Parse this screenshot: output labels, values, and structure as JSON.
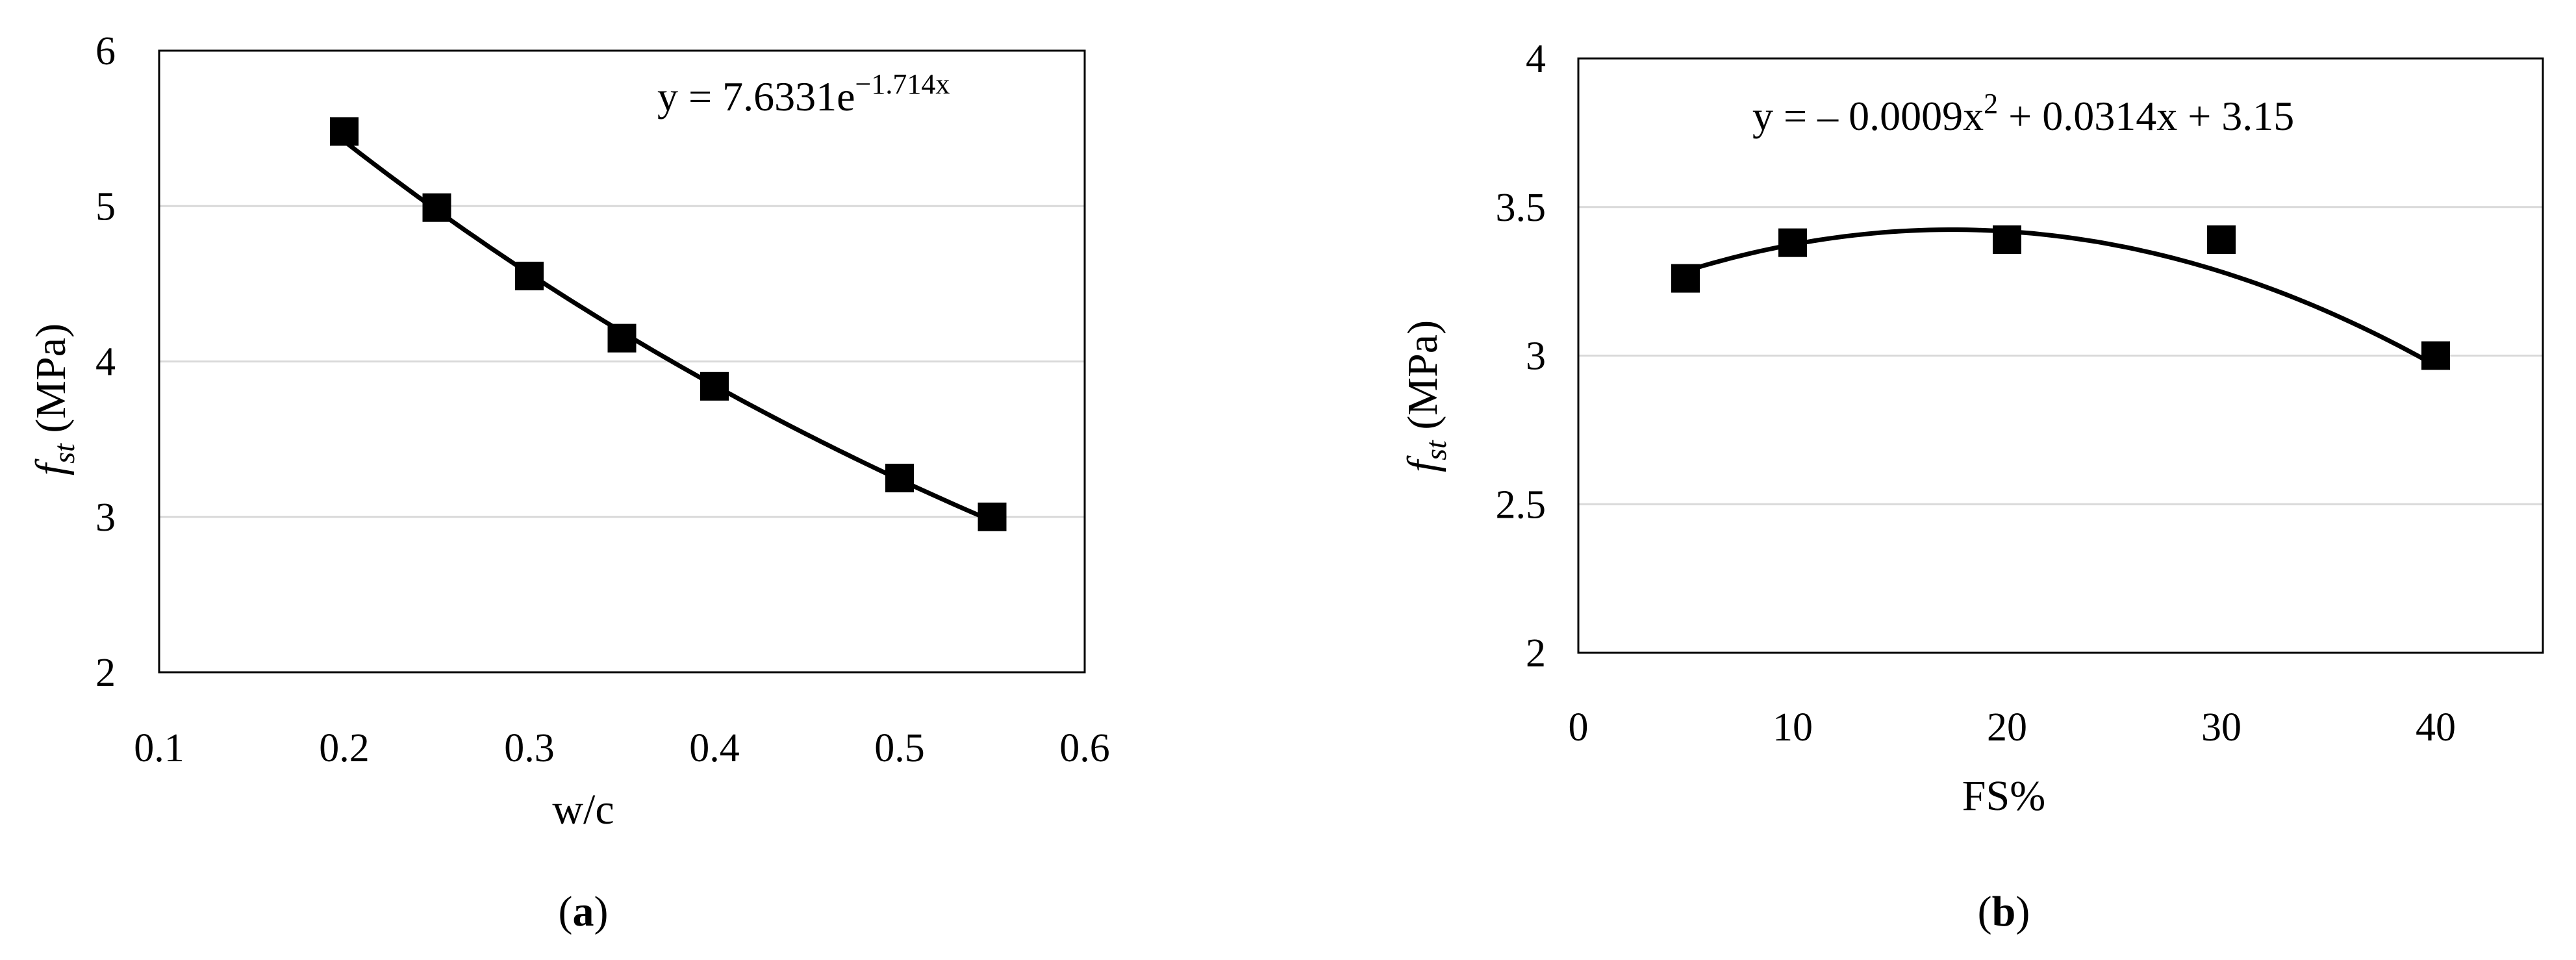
{
  "chart_data": [
    {
      "type": "scatter",
      "panel_label": "a",
      "xlabel": "w/c",
      "ylabel_main": "f",
      "ylabel_sub": "st",
      "ylabel_unit": " (MPa)",
      "xlim": [
        0.1,
        0.6
      ],
      "ylim": [
        2,
        6
      ],
      "xticks": [
        0.1,
        0.2,
        0.3,
        0.4,
        0.5,
        0.6
      ],
      "xtick_labels": [
        "0.1",
        "0.2",
        "0.3",
        "0.4",
        "0.5",
        "0.6"
      ],
      "yticks": [
        2,
        3,
        4,
        5,
        6
      ],
      "ytick_labels": [
        "2",
        "3",
        "4",
        "5",
        "6"
      ],
      "grid": "horizontal",
      "marker": "square",
      "points": [
        {
          "x": 0.2,
          "y": 5.48
        },
        {
          "x": 0.25,
          "y": 4.99
        },
        {
          "x": 0.3,
          "y": 4.55
        },
        {
          "x": 0.35,
          "y": 4.15
        },
        {
          "x": 0.4,
          "y": 3.84
        },
        {
          "x": 0.5,
          "y": 3.25
        },
        {
          "x": 0.55,
          "y": 3.0
        }
      ],
      "trendline": {
        "kind": "exponential",
        "a": 7.6331,
        "b": -1.714,
        "x_range": [
          0.2,
          0.55
        ]
      },
      "equation_main": "y = 7.6331e",
      "equation_sup": "−1.714x"
    },
    {
      "type": "scatter",
      "panel_label": "b",
      "xlabel": "FS%",
      "ylabel_main": "f",
      "ylabel_sub": "st",
      "ylabel_unit": " (MPa)",
      "xlim": [
        0,
        45
      ],
      "ylim": [
        2,
        4
      ],
      "xticks": [
        0,
        10,
        20,
        30,
        40
      ],
      "xtick_labels": [
        "0",
        "10",
        "20",
        "30",
        "40"
      ],
      "yticks": [
        2,
        2.5,
        3,
        3.5,
        4
      ],
      "ytick_labels": [
        "2",
        "2.5",
        "3",
        "3.5",
        "4"
      ],
      "grid": "horizontal",
      "marker": "square",
      "points": [
        {
          "x": 5,
          "y": 3.26
        },
        {
          "x": 10,
          "y": 3.38
        },
        {
          "x": 20,
          "y": 3.39
        },
        {
          "x": 30,
          "y": 3.39
        },
        {
          "x": 40,
          "y": 3.0
        }
      ],
      "trendline": {
        "kind": "polynomial",
        "coefficients": [
          -0.0009,
          0.0314,
          3.15
        ],
        "x_range": [
          5,
          40
        ]
      },
      "equation_part1": "y = – 0.0009x",
      "equation_sup": "2",
      "equation_part2": " + 0.0314x + 3.15"
    }
  ]
}
